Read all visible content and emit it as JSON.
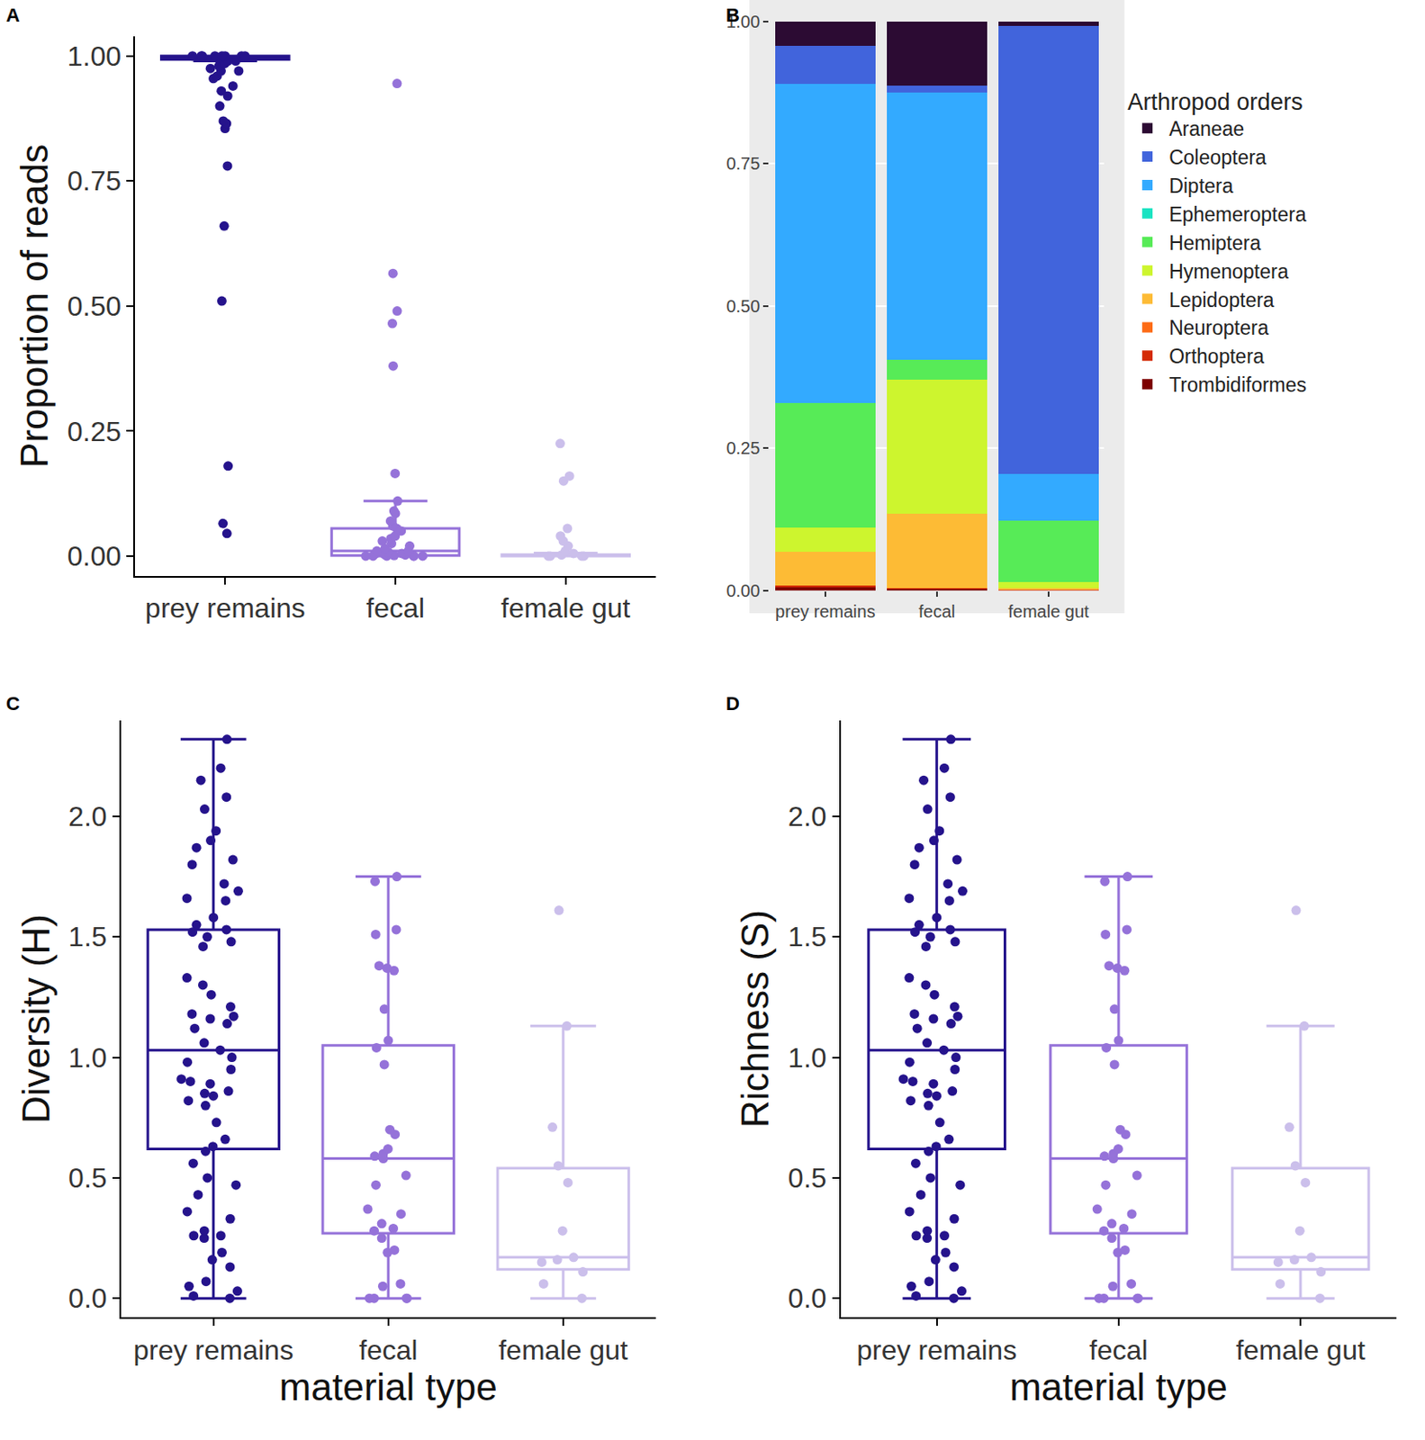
{
  "chart_data": [
    {
      "type": "box",
      "title": "A",
      "y_label": "Proportion of reads",
      "categories": [
        "prey remains",
        "fecal",
        "female gut"
      ],
      "colors": [
        "#25138c",
        "#9572d9",
        "#cbbfeb"
      ],
      "ylim": [
        -0.04,
        1.04
      ],
      "yticks": [
        {
          "value": 0,
          "label": "0.00"
        },
        0.25,
        {
          "value": 0.5,
          "label": "0.50"
        },
        0.75,
        {
          "value": 1,
          "label": "1.00"
        }
      ],
      "grid": false,
      "boxes": [
        {
          "category": "prey remains",
          "q1": 0.993,
          "median": 1,
          "q3": 1,
          "lowerfence": 0.99,
          "upperfence": 1,
          "points": [
            1,
            1,
            1,
            1,
            1,
            1,
            1,
            1,
            0.995,
            0.99,
            0.99,
            0.985,
            0.98,
            0.975,
            0.97,
            0.97,
            0.96,
            0.955,
            0.94,
            0.93,
            0.92,
            0.9,
            0.87,
            0.865,
            0.855,
            0.78,
            0.66,
            0.51,
            0.18,
            0.065,
            0.045
          ]
        },
        {
          "category": "fecal",
          "q1": 0.001,
          "median": 0.01,
          "q3": 0.055,
          "lowerfence": 0,
          "upperfence": 0.11,
          "points": [
            0.945,
            0.565,
            0.49,
            0.465,
            0.38,
            0.165,
            0.11,
            0.09,
            0.085,
            0.07,
            0.06,
            0.055,
            0.05,
            0.04,
            0.035,
            0.03,
            0.025,
            0.02,
            0.015,
            0.01,
            0.01,
            0.008,
            0.005,
            0.004,
            0.003,
            0.002,
            0.001,
            0,
            0,
            0,
            0,
            0,
            0
          ]
        },
        {
          "category": "female gut",
          "q1": 0,
          "median": 0.001,
          "q3": 0.003,
          "lowerfence": 0,
          "upperfence": 0.006,
          "points": [
            0.225,
            0.16,
            0.15,
            0.055,
            0.04,
            0.03,
            0.02,
            0.01,
            0.005,
            0.002,
            0,
            0,
            0,
            0
          ]
        }
      ]
    },
    {
      "type": "bar",
      "title": "B",
      "stacked": true,
      "legend": "right",
      "legend_title": "Arthropod orders",
      "categories": [
        "prey remains",
        "fecal",
        "female gut"
      ],
      "ylim": [
        0,
        1
      ],
      "yticks": [
        {
          "value": 0,
          "label": "0.00"
        },
        0.25,
        {
          "value": 0.5,
          "label": "0.50"
        },
        0.75,
        {
          "value": 1,
          "label": "1.00"
        }
      ],
      "grid": true,
      "series": [
        {
          "name": "Araneae",
          "color": "#2c0b33",
          "values": [
            0.042,
            0.112,
            0.007
          ]
        },
        {
          "name": "Coleoptera",
          "color": "#4164dc",
          "values": [
            0.068,
            0.013,
            0.788
          ]
        },
        {
          "name": "Diptera",
          "color": "#33aaff",
          "values": [
            0.56,
            0.47,
            0.082
          ]
        },
        {
          "name": "Ephemeroptera",
          "color": "#1ae3c2",
          "values": [
            0,
            0,
            0
          ]
        },
        {
          "name": "Hemiptera",
          "color": "#57eb57",
          "values": [
            0.22,
            0.035,
            0.108
          ]
        },
        {
          "name": "Hymenoptera",
          "color": "#cdf52e",
          "values": [
            0.042,
            0.235,
            0.011
          ]
        },
        {
          "name": "Lepidoptera",
          "color": "#fdbb35",
          "values": [
            0.06,
            0.131,
            0.003
          ]
        },
        {
          "name": "Neuroptera",
          "color": "#fd6b15",
          "values": [
            0,
            0,
            0
          ]
        },
        {
          "name": "Orthoptera",
          "color": "#d42a05",
          "values": [
            0.003,
            0.002,
            0.001
          ]
        },
        {
          "name": "Trombidiformes",
          "color": "#7d0000",
          "values": [
            0.005,
            0.002,
            0
          ]
        }
      ]
    },
    {
      "type": "box",
      "title": "C",
      "x_label": "material type",
      "y_label": "Diversity (H)",
      "categories": [
        "prey remains",
        "fecal",
        "female gut"
      ],
      "colors": [
        "#25138c",
        "#9572d9",
        "#cbbfeb"
      ],
      "ylim": [
        -0.08,
        2.4
      ],
      "yticks": [
        {
          "value": 0,
          "label": "0.0"
        },
        0.5,
        {
          "value": 1,
          "label": "1.0"
        },
        1.5,
        {
          "value": 2,
          "label": "2.0"
        }
      ],
      "grid": false,
      "boxes": [
        {
          "category": "prey remains",
          "q1": 0.62,
          "median": 1.03,
          "q3": 1.53,
          "lowerfence": 0,
          "upperfence": 2.32,
          "points": [
            2.32,
            2.2,
            2.15,
            2.08,
            2.03,
            1.94,
            1.9,
            1.87,
            1.82,
            1.8,
            1.72,
            1.69,
            1.66,
            1.65,
            1.58,
            1.55,
            1.53,
            1.52,
            1.5,
            1.48,
            1.46,
            1.33,
            1.3,
            1.26,
            1.21,
            1.18,
            1.17,
            1.16,
            1.14,
            1.12,
            1.06,
            1.03,
            1.0,
            0.98,
            0.95,
            0.91,
            0.9,
            0.89,
            0.86,
            0.85,
            0.84,
            0.82,
            0.8,
            0.73,
            0.66,
            0.63,
            0.61,
            0.56,
            0.5,
            0.47,
            0.43,
            0.36,
            0.33,
            0.28,
            0.26,
            0.26,
            0.25,
            0.19,
            0.16,
            0.13,
            0.07,
            0.05,
            0.03,
            0.01,
            0
          ]
        },
        {
          "category": "fecal",
          "q1": 0.27,
          "median": 0.58,
          "q3": 1.05,
          "lowerfence": 0,
          "upperfence": 1.75,
          "points": [
            1.75,
            1.73,
            1.53,
            1.51,
            1.38,
            1.37,
            1.36,
            1.2,
            1.07,
            1.04,
            0.97,
            0.7,
            0.68,
            0.62,
            0.6,
            0.59,
            0.58,
            0.51,
            0.47,
            0.37,
            0.35,
            0.31,
            0.29,
            0.28,
            0.25,
            0.2,
            0.19,
            0.06,
            0.05,
            0,
            0,
            0,
            0
          ]
        },
        {
          "category": "female gut",
          "q1": 0.12,
          "median": 0.17,
          "q3": 0.54,
          "lowerfence": 0,
          "upperfence": 1.13,
          "points": [
            1.61,
            1.13,
            0.71,
            0.55,
            0.48,
            0.28,
            0.17,
            0.16,
            0.15,
            0.11,
            0.06,
            0
          ]
        }
      ]
    },
    {
      "type": "box",
      "title": "D",
      "x_label": "material type",
      "y_label": "Richness (S)",
      "categories": [
        "prey remains",
        "fecal",
        "female gut"
      ],
      "colors": [
        "#25138c",
        "#9572d9",
        "#cbbfeb"
      ],
      "ylim": [
        -0.08,
        2.4
      ],
      "yticks": [
        {
          "value": 0,
          "label": "0.0"
        },
        0.5,
        {
          "value": 1,
          "label": "1.0"
        },
        1.5,
        {
          "value": 2,
          "label": "2.0"
        }
      ],
      "grid": false,
      "boxes": [
        {
          "category": "prey remains",
          "q1": 0.62,
          "median": 1.03,
          "q3": 1.53,
          "lowerfence": 0,
          "upperfence": 2.32,
          "points": [
            2.32,
            2.2,
            2.15,
            2.08,
            2.03,
            1.94,
            1.9,
            1.87,
            1.82,
            1.8,
            1.72,
            1.69,
            1.66,
            1.65,
            1.58,
            1.55,
            1.53,
            1.52,
            1.5,
            1.48,
            1.46,
            1.33,
            1.3,
            1.26,
            1.21,
            1.18,
            1.17,
            1.16,
            1.14,
            1.12,
            1.06,
            1.03,
            1.0,
            0.98,
            0.95,
            0.91,
            0.9,
            0.89,
            0.86,
            0.85,
            0.84,
            0.82,
            0.8,
            0.73,
            0.66,
            0.63,
            0.61,
            0.56,
            0.5,
            0.47,
            0.43,
            0.36,
            0.33,
            0.28,
            0.26,
            0.26,
            0.25,
            0.19,
            0.16,
            0.13,
            0.07,
            0.05,
            0.03,
            0.01,
            0
          ]
        },
        {
          "category": "fecal",
          "q1": 0.27,
          "median": 0.58,
          "q3": 1.05,
          "lowerfence": 0,
          "upperfence": 1.75,
          "points": [
            1.75,
            1.73,
            1.53,
            1.51,
            1.38,
            1.37,
            1.36,
            1.2,
            1.07,
            1.04,
            0.97,
            0.7,
            0.68,
            0.62,
            0.6,
            0.59,
            0.58,
            0.51,
            0.47,
            0.37,
            0.35,
            0.31,
            0.29,
            0.28,
            0.25,
            0.2,
            0.19,
            0.06,
            0.05,
            0,
            0,
            0,
            0
          ]
        },
        {
          "category": "female gut",
          "q1": 0.12,
          "median": 0.17,
          "q3": 0.54,
          "lowerfence": 0,
          "upperfence": 1.13,
          "points": [
            1.61,
            1.13,
            0.71,
            0.55,
            0.48,
            0.28,
            0.17,
            0.16,
            0.15,
            0.11,
            0.06,
            0
          ]
        }
      ]
    }
  ]
}
